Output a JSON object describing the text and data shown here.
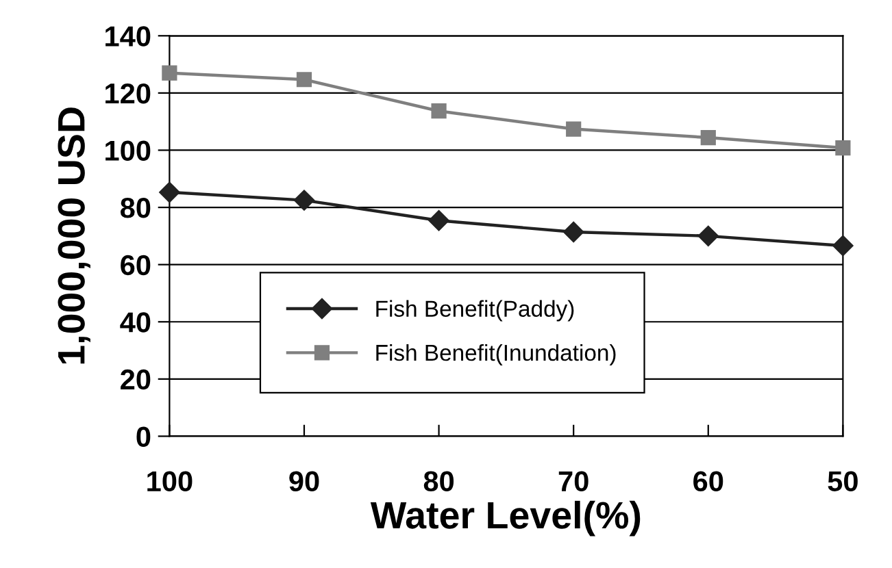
{
  "chart_data": {
    "type": "line",
    "xlabel": "Water Level(%)",
    "ylabel": "1,000,000 USD",
    "x": [
      100,
      90,
      80,
      70,
      60,
      50
    ],
    "series": [
      {
        "name": "Fish Benefit(Paddy)",
        "color": "#222222",
        "values": [
          85.3,
          82.5,
          75.4,
          71.4,
          70,
          66.6
        ],
        "marker": "diamond"
      },
      {
        "name": "Fish Benefit(Inundation)",
        "color": "#7f7f7f",
        "values": [
          127,
          124.7,
          113.7,
          107.4,
          104.4,
          100.8
        ],
        "marker": "square"
      }
    ],
    "xlim": [
      100,
      50
    ],
    "xticks": [
      100,
      90,
      80,
      70,
      60,
      50
    ],
    "ylim": [
      0,
      140
    ],
    "yticks": [
      0,
      20,
      40,
      60,
      80,
      100,
      120,
      140
    ],
    "grid": "y",
    "legend": "bottom",
    "line_style": "solid"
  }
}
